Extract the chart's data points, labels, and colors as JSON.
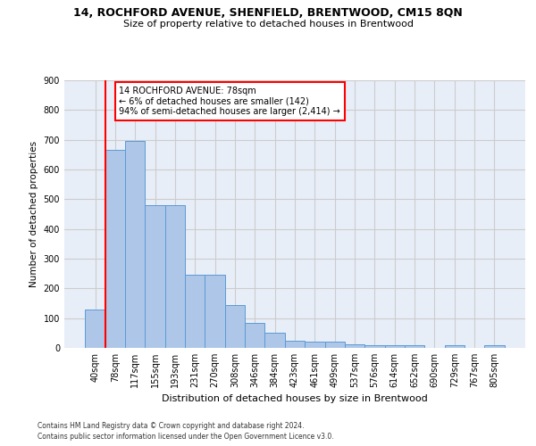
{
  "title": "14, ROCHFORD AVENUE, SHENFIELD, BRENTWOOD, CM15 8QN",
  "subtitle": "Size of property relative to detached houses in Brentwood",
  "xlabel": "Distribution of detached houses by size in Brentwood",
  "ylabel": "Number of detached properties",
  "footer_line1": "Contains HM Land Registry data © Crown copyright and database right 2024.",
  "footer_line2": "Contains public sector information licensed under the Open Government Licence v3.0.",
  "bin_labels": [
    "40sqm",
    "78sqm",
    "117sqm",
    "155sqm",
    "193sqm",
    "231sqm",
    "270sqm",
    "308sqm",
    "346sqm",
    "384sqm",
    "423sqm",
    "461sqm",
    "499sqm",
    "537sqm",
    "576sqm",
    "614sqm",
    "652sqm",
    "690sqm",
    "729sqm",
    "767sqm",
    "805sqm"
  ],
  "bar_values": [
    130,
    665,
    695,
    480,
    480,
    245,
    245,
    145,
    85,
    50,
    25,
    20,
    20,
    12,
    10,
    9,
    9,
    0,
    10,
    0,
    10
  ],
  "bar_color": "#aec6e8",
  "bar_edge_color": "#5b9bd5",
  "annotation_text": "14 ROCHFORD AVENUE: 78sqm\n← 6% of detached houses are smaller (142)\n94% of semi-detached houses are larger (2,414) →",
  "annotation_box_color": "white",
  "annotation_box_edge_color": "red",
  "vline_color": "red",
  "ylim": [
    0,
    900
  ],
  "yticks": [
    0,
    100,
    200,
    300,
    400,
    500,
    600,
    700,
    800,
    900
  ],
  "grid_color": "#cccccc",
  "background_color": "#e8eef8"
}
